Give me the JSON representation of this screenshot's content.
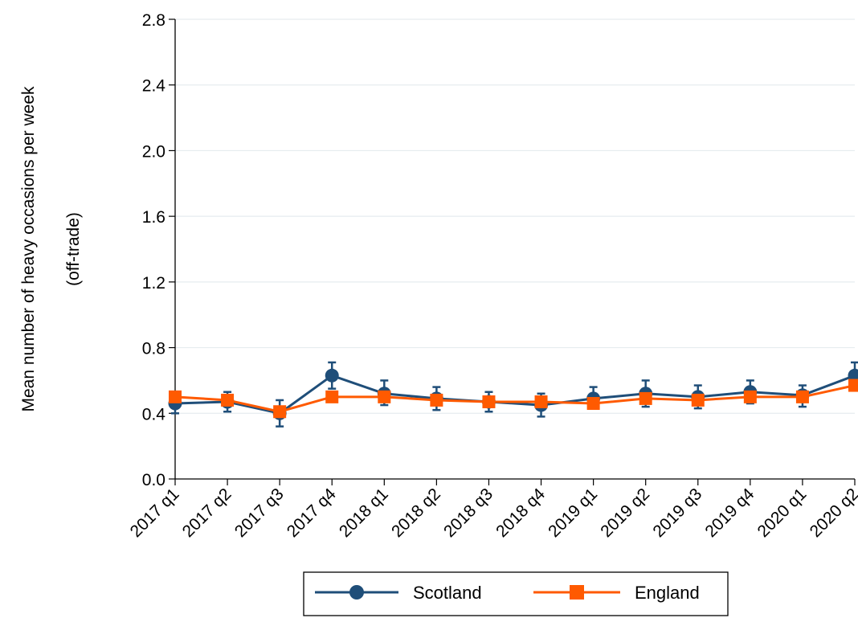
{
  "chart_data": {
    "type": "line",
    "title": "",
    "xlabel": "",
    "ylabel_lines": [
      "Mean number of heavy occasions per week",
      "(off-trade)"
    ],
    "categories": [
      "2017 q1",
      "2017 q2",
      "2017 q3",
      "2017 q4",
      "2018 q1",
      "2018 q2",
      "2018 q3",
      "2018 q4",
      "2019 q1",
      "2019 q2",
      "2019 q3",
      "2019 q4",
      "2020 q1",
      "2020 q2"
    ],
    "ylim": [
      0,
      2.8
    ],
    "yticks": [
      "0.0",
      "0.4",
      "0.8",
      "1.2",
      "1.6",
      "2.0",
      "2.4",
      "2.8"
    ],
    "grid": true,
    "legend_position": "bottom",
    "series": [
      {
        "name": "Scotland",
        "color": "#1f4e79",
        "marker": "circle",
        "values": [
          0.46,
          0.47,
          0.4,
          0.63,
          0.52,
          0.49,
          0.47,
          0.45,
          0.49,
          0.52,
          0.5,
          0.53,
          0.51,
          0.63
        ],
        "lower": [
          0.4,
          0.41,
          0.32,
          0.55,
          0.45,
          0.42,
          0.41,
          0.38,
          0.43,
          0.44,
          0.43,
          0.46,
          0.44,
          0.56
        ],
        "upper": [
          0.52,
          0.53,
          0.48,
          0.71,
          0.6,
          0.56,
          0.53,
          0.52,
          0.56,
          0.6,
          0.57,
          0.6,
          0.57,
          0.71
        ]
      },
      {
        "name": "England",
        "color": "#ff5a00",
        "marker": "square",
        "values": [
          0.5,
          0.48,
          0.41,
          0.5,
          0.5,
          0.48,
          0.47,
          0.47,
          0.46,
          0.49,
          0.48,
          0.5,
          0.5,
          0.57
        ]
      }
    ]
  }
}
